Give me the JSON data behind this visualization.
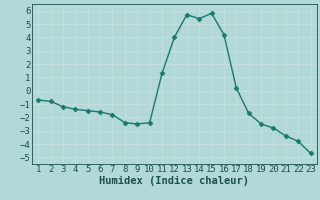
{
  "x": [
    1,
    2,
    3,
    4,
    5,
    6,
    7,
    8,
    9,
    10,
    11,
    12,
    13,
    14,
    15,
    16,
    17,
    18,
    19,
    20,
    21,
    22,
    23
  ],
  "y": [
    -0.7,
    -0.8,
    -1.2,
    -1.4,
    -1.5,
    -1.6,
    -1.8,
    -2.4,
    -2.5,
    -2.4,
    1.3,
    4.0,
    5.7,
    5.4,
    5.8,
    4.2,
    0.2,
    -1.7,
    -2.5,
    -2.8,
    -3.4,
    -3.8,
    -4.7
  ],
  "line_color": "#1a7a6a",
  "marker": "D",
  "marker_size": 2.5,
  "bg_color": "#b2d8d8",
  "grid_color": "#d4e8e8",
  "xlabel": "Humidex (Indice chaleur)",
  "ylim": [
    -5.5,
    6.5
  ],
  "xlim": [
    0.5,
    23.5
  ],
  "yticks": [
    -5,
    -4,
    -3,
    -2,
    -1,
    0,
    1,
    2,
    3,
    4,
    5,
    6
  ],
  "xticks": [
    1,
    2,
    3,
    4,
    5,
    6,
    7,
    8,
    9,
    10,
    11,
    12,
    13,
    14,
    15,
    16,
    17,
    18,
    19,
    20,
    21,
    22,
    23
  ],
  "tick_fontsize": 6.5,
  "xlabel_fontsize": 7.5,
  "label_color": "#1a5050",
  "linewidth": 1.0
}
